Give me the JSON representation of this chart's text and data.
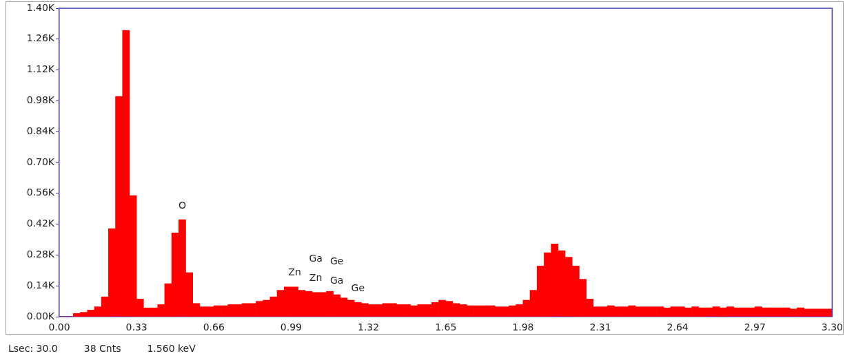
{
  "chart_data": {
    "type": "histogram",
    "bins": [
      0,
      0.03,
      0.06,
      0.09,
      0.12,
      0.15,
      0.18,
      0.21,
      0.24,
      0.27,
      0.3,
      0.33,
      0.36,
      0.39,
      0.42,
      0.45,
      0.48,
      0.51,
      0.54,
      0.57,
      0.6,
      0.63,
      0.66,
      0.69,
      0.72,
      0.75,
      0.78,
      0.81,
      0.84,
      0.87,
      0.9,
      0.93,
      0.96,
      0.99,
      1.02,
      1.05,
      1.08,
      1.11,
      1.14,
      1.17,
      1.2,
      1.23,
      1.26,
      1.29,
      1.32,
      1.35,
      1.38,
      1.41,
      1.44,
      1.47,
      1.5,
      1.53,
      1.56,
      1.59,
      1.62,
      1.65,
      1.68,
      1.71,
      1.74,
      1.77,
      1.8,
      1.83,
      1.86,
      1.89,
      1.92,
      1.95,
      1.98,
      2.01,
      2.04,
      2.07,
      2.1,
      2.13,
      2.16,
      2.19,
      2.22,
      2.25,
      2.28,
      2.31,
      2.34,
      2.37,
      2.4,
      2.43,
      2.46,
      2.49,
      2.52,
      2.55,
      2.58,
      2.61,
      2.64,
      2.67,
      2.7,
      2.73,
      2.76,
      2.79,
      2.82,
      2.85,
      2.88,
      2.91,
      2.94,
      2.97,
      3,
      3.03,
      3.06,
      3.09,
      3.12,
      3.15,
      3.18,
      3.21,
      3.24,
      3.27,
      3.3
    ],
    "values": [
      0,
      0,
      15,
      20,
      30,
      45,
      90,
      400,
      1000,
      1300,
      550,
      80,
      40,
      40,
      55,
      150,
      380,
      440,
      200,
      60,
      45,
      45,
      50,
      50,
      55,
      55,
      60,
      60,
      70,
      75,
      90,
      120,
      135,
      135,
      120,
      115,
      110,
      110,
      115,
      100,
      85,
      75,
      65,
      60,
      55,
      55,
      60,
      60,
      55,
      55,
      50,
      55,
      55,
      65,
      75,
      70,
      60,
      55,
      50,
      50,
      50,
      50,
      45,
      45,
      50,
      55,
      75,
      120,
      230,
      290,
      330,
      300,
      270,
      230,
      170,
      80,
      45,
      45,
      50,
      45,
      45,
      50,
      45,
      45,
      45,
      45,
      40,
      45,
      45,
      40,
      45,
      40,
      40,
      45,
      40,
      45,
      40,
      40,
      40,
      45,
      40,
      40,
      40,
      40,
      35,
      40,
      35,
      35,
      35,
      35
    ],
    "color": "#ff0000",
    "xlim": [
      0,
      3.3
    ],
    "xticks": [
      {
        "value": 0,
        "label": "0.00"
      },
      0.33,
      0.66,
      0.99,
      1.32,
      1.65,
      1.98,
      2.31,
      2.64,
      2.97,
      {
        "value": 3.3,
        "label": "3.30"
      }
    ],
    "ylim": [
      0,
      1400
    ],
    "yticks": [
      {
        "value": 0,
        "label": "0.00K"
      },
      {
        "value": 140,
        "label": "0.14K"
      },
      {
        "value": 280,
        "label": "0.28K"
      },
      {
        "value": 420,
        "label": "0.42K"
      },
      {
        "value": 560,
        "label": "0.56K"
      },
      {
        "value": 700,
        "label": "0.70K"
      },
      {
        "value": 840,
        "label": "0.84K"
      },
      {
        "value": 980,
        "label": "0.98K"
      },
      {
        "value": 1120,
        "label": "1.12K"
      },
      {
        "value": 1260,
        "label": "1.26K"
      },
      {
        "value": 1400,
        "label": "1.40K"
      }
    ],
    "grid": false,
    "annotations": [
      {
        "text": "O",
        "x": 0.525,
        "y": 440
      },
      {
        "text": "Zn",
        "x": 1.005,
        "y": 135
      },
      {
        "text": "Zn",
        "x": 1.095,
        "y": 110
      },
      {
        "text": "Ga",
        "x": 1.095,
        "y": 110
      },
      {
        "text": "Ga",
        "x": 1.185,
        "y": 100
      },
      {
        "text": "Ge",
        "x": 1.185,
        "y": 100
      },
      {
        "text": "Ge",
        "x": 1.275,
        "y": 65
      },
      "Lsec: 30.0",
      "38 Cnts",
      "1.560 keV"
    ]
  }
}
